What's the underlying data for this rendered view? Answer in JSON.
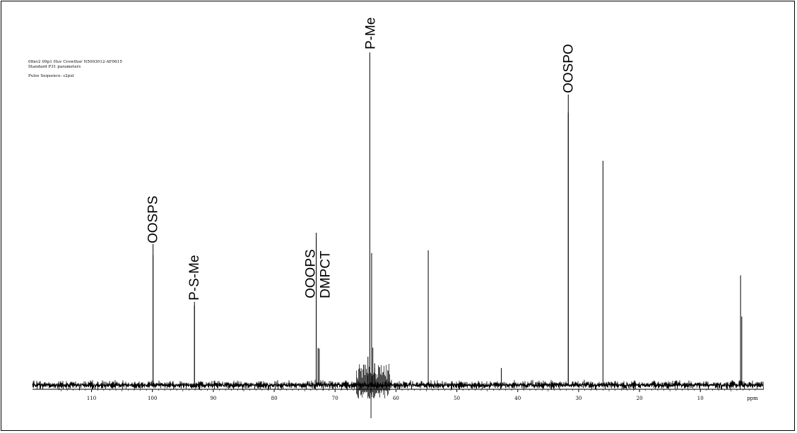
{
  "header": {
    "line1": "08nv2 09p1 Huv Crowther N5003012-AF0615",
    "line2": "Standard P31 parameters",
    "line3": "Pulse Sequence: s2pul"
  },
  "chart_data": {
    "type": "line",
    "title": "",
    "xlabel": "",
    "ylabel": "",
    "x_unit": "ppm",
    "xlim": [
      119.7,
      -0.3
    ],
    "x_reversed": true,
    "ticks": [
      110,
      100,
      90,
      80,
      70,
      60,
      50,
      40,
      30,
      20,
      10
    ],
    "tick_labels": [
      "110",
      "100",
      "90",
      "80",
      "70",
      "60",
      "50",
      "40",
      "30",
      "20",
      "10"
    ],
    "ylim": [
      -0.05,
      1.0
    ],
    "grid": false,
    "peaks": [
      {
        "x": 99.9,
        "y": 0.389
      },
      {
        "x": 93.1,
        "y": 0.238
      },
      {
        "x": 73.1,
        "y": 0.439
      },
      {
        "x": 72.8,
        "y": 0.111
      },
      {
        "x": 72.6,
        "y": 0.109
      },
      {
        "x": 64.3,
        "y": 0.995
      },
      {
        "x": 64.0,
        "y": 0.395
      },
      {
        "x": 63.8,
        "y": 0.112
      },
      {
        "x": 64.6,
        "y": 0.085
      },
      {
        "x": 63.5,
        "y": 0.065
      },
      {
        "x": 54.7,
        "y": 0.403
      },
      {
        "x": 42.7,
        "y": 0.051
      },
      {
        "x": 31.7,
        "y": 0.815
      },
      {
        "x": 26.0,
        "y": 0.671
      },
      {
        "x": 3.4,
        "y": 0.328
      },
      {
        "x": 3.2,
        "y": 0.205
      }
    ],
    "annotations": [
      {
        "label": "OOSPS",
        "x": 99.9
      },
      {
        "label": "P-S-Me",
        "x": 93.1
      },
      {
        "label": "OOOPS",
        "x": 73.1
      },
      {
        "label": "DMPCT",
        "x": 73.1
      },
      {
        "label": "P-Me",
        "x": 64.3
      },
      {
        "label": "OOSPO",
        "x": 31.7
      }
    ]
  }
}
